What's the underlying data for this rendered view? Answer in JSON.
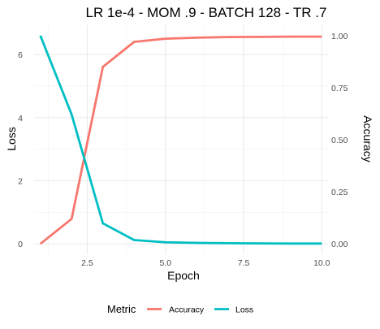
{
  "chart_data": {
    "type": "line",
    "title": "LR 1e-4 - MOM .9 - BATCH 128 - TR .7",
    "xlabel": "Epoch",
    "ylabel_left": "Loss",
    "ylabel_right": "Accuracy",
    "x": [
      1,
      2,
      3,
      4,
      5,
      6,
      7,
      8,
      9,
      10
    ],
    "xlim": [
      0.8,
      10.2
    ],
    "xticks": [
      2.5,
      5.0,
      7.5,
      10.0
    ],
    "xtick_labels": [
      "2.5",
      "5.0",
      "7.5",
      "10.0"
    ],
    "y_left_lim": [
      -0.33,
      6.93
    ],
    "y_left_ticks": [
      0,
      2,
      4,
      6
    ],
    "y_left_tick_labels": [
      "0",
      "2",
      "4",
      "6"
    ],
    "y_right_lim": [
      -0.05,
      1.05
    ],
    "y_right_ticks": [
      0,
      0.25,
      0.5,
      0.75,
      1.0
    ],
    "y_right_tick_labels": [
      "0.00",
      "0.25",
      "0.50",
      "0.75",
      "1.00"
    ],
    "grid": true,
    "legend_placement": "bottom",
    "legend_title": "Metric",
    "series": [
      {
        "name": "Accuracy",
        "axis": "right",
        "color": "#F8766D",
        "values": [
          0.0,
          0.12,
          0.85,
          0.97,
          0.985,
          0.99,
          0.993,
          0.994,
          0.995,
          0.995
        ]
      },
      {
        "name": "Loss",
        "axis": "left",
        "color": "#00BFC4",
        "values": [
          6.6,
          4.1,
          0.65,
          0.12,
          0.05,
          0.03,
          0.02,
          0.015,
          0.01,
          0.01
        ]
      }
    ]
  }
}
